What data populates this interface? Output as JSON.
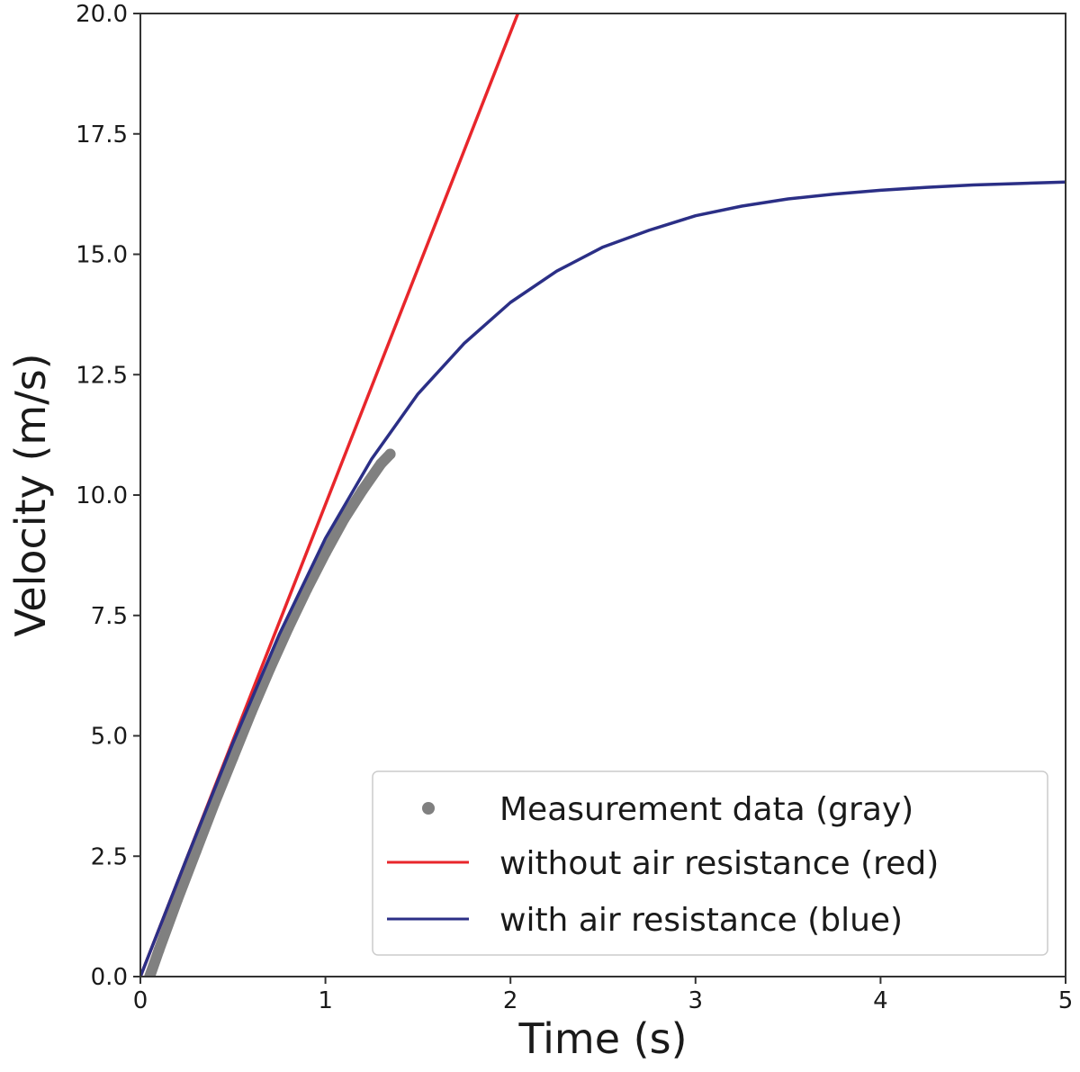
{
  "chart_data": {
    "type": "line",
    "title": "",
    "xlabel": "Time (s)",
    "ylabel": "Velocity (m/s)",
    "xlim": [
      0,
      5
    ],
    "ylim": [
      0,
      20
    ],
    "x_ticks": [
      "0",
      "1",
      "2",
      "3",
      "4",
      "5"
    ],
    "y_ticks": [
      "0.0",
      "2.5",
      "5.0",
      "7.5",
      "10.0",
      "12.5",
      "15.0",
      "17.5",
      "20.0"
    ],
    "grid": false,
    "legend_position": "lower-right",
    "series": [
      {
        "name": "Measurement data (gray)",
        "kind": "scatter",
        "color": "#808080",
        "points": [
          [
            0.05,
            0.0
          ],
          [
            0.1,
            0.55
          ],
          [
            0.2,
            1.6
          ],
          [
            0.3,
            2.6
          ],
          [
            0.4,
            3.6
          ],
          [
            0.5,
            4.55
          ],
          [
            0.6,
            5.5
          ],
          [
            0.7,
            6.4
          ],
          [
            0.8,
            7.25
          ],
          [
            0.9,
            8.05
          ],
          [
            1.0,
            8.8
          ],
          [
            1.1,
            9.5
          ],
          [
            1.2,
            10.1
          ],
          [
            1.3,
            10.65
          ],
          [
            1.35,
            10.85
          ]
        ]
      },
      {
        "name": "without air resistance (red)",
        "kind": "line",
        "color": "#e8262b",
        "points": [
          [
            0,
            0
          ],
          [
            2.04,
            20.0
          ]
        ]
      },
      {
        "name": "with air resistance (blue)",
        "kind": "line",
        "color": "#2b2f86",
        "points": [
          [
            0,
            0
          ],
          [
            0.25,
            2.45
          ],
          [
            0.5,
            4.85
          ],
          [
            0.75,
            7.1
          ],
          [
            1.0,
            9.1
          ],
          [
            1.25,
            10.75
          ],
          [
            1.5,
            12.1
          ],
          [
            1.75,
            13.15
          ],
          [
            2.0,
            14.0
          ],
          [
            2.25,
            14.65
          ],
          [
            2.5,
            15.15
          ],
          [
            2.75,
            15.5
          ],
          [
            3.0,
            15.8
          ],
          [
            3.25,
            16.0
          ],
          [
            3.5,
            16.15
          ],
          [
            3.75,
            16.25
          ],
          [
            4.0,
            16.33
          ],
          [
            4.25,
            16.39
          ],
          [
            4.5,
            16.44
          ],
          [
            4.75,
            16.47
          ],
          [
            5.0,
            16.5
          ]
        ]
      }
    ]
  }
}
